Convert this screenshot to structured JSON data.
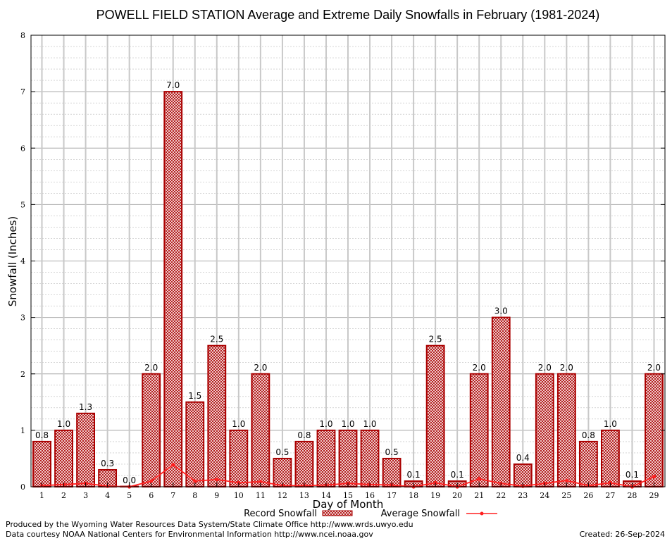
{
  "chart_data": {
    "type": "bar",
    "title": "POWELL FIELD STATION Average and Extreme Daily Snowfalls in February (1981-2024)",
    "xlabel": "Day of Month",
    "ylabel": "Snowfall (Inches)",
    "ylim": [
      0,
      8
    ],
    "yticks": [
      "0",
      "1",
      "2",
      "3",
      "4",
      "5",
      "6",
      "7",
      "8"
    ],
    "grid": true,
    "legend_position": "bottom",
    "categories": [
      "1",
      "2",
      "3",
      "4",
      "5",
      "6",
      "7",
      "8",
      "9",
      "10",
      "11",
      "12",
      "13",
      "14",
      "15",
      "16",
      "17",
      "18",
      "19",
      "20",
      "21",
      "22",
      "23",
      "24",
      "25",
      "26",
      "27",
      "28",
      "29"
    ],
    "series": [
      {
        "name": "Record Snowfall",
        "type": "bar",
        "color": "#aa0000",
        "values": [
          0.8,
          1.0,
          1.3,
          0.3,
          0.0,
          2.0,
          7.0,
          1.5,
          2.5,
          1.0,
          2.0,
          0.5,
          0.8,
          1.0,
          1.0,
          1.0,
          0.5,
          0.1,
          2.5,
          0.1,
          2.0,
          3.0,
          0.4,
          2.0,
          2.0,
          0.8,
          1.0,
          0.1,
          2.0
        ],
        "labels": [
          "0.8",
          "1.0",
          "1.3",
          "0.3",
          "0.0",
          "2.0",
          "7.0",
          "1.5",
          "2.5",
          "1.0",
          "2.0",
          "0.5",
          "0.8",
          "1.0",
          "1.0",
          "1.0",
          "0.5",
          "0.1",
          "2.5",
          "0.1",
          "2.0",
          "3.0",
          "0.4",
          "2.0",
          "2.0",
          "0.8",
          "1.0",
          "0.1",
          "2.0"
        ]
      },
      {
        "name": "Average Snowfall",
        "type": "line",
        "color": "#ff2020",
        "values": [
          0.02,
          0.04,
          0.06,
          0.01,
          0.0,
          0.1,
          0.39,
          0.1,
          0.13,
          0.07,
          0.09,
          0.02,
          0.02,
          0.03,
          0.06,
          0.04,
          0.03,
          0.0,
          0.07,
          0.0,
          0.14,
          0.06,
          0.01,
          0.06,
          0.11,
          0.02,
          0.07,
          0.0,
          0.18
        ]
      }
    ]
  },
  "footer": {
    "produced_by": "Produced by the Wyoming Water Resources Data System/State Climate Office http://www.wrds.uwyo.edu",
    "courtesy": "Data courtesy NOAA National Centers for Environmental Information http://www.ncei.noaa.gov",
    "created": "Created:  26-Sep-2024"
  }
}
